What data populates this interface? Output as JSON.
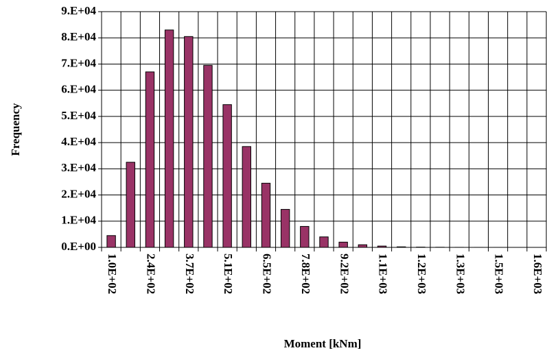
{
  "chart_data": {
    "type": "bar",
    "x_label": "Moment [kNm]",
    "y_label": "Frequency",
    "categories": [
      "1.0E+02",
      null,
      "2.4E+02",
      null,
      "3.7E+02",
      null,
      "5.1E+02",
      null,
      "6.5E+02",
      null,
      "7.8E+02",
      null,
      "9.2E+02",
      null,
      "1.1E+03",
      null,
      "1.2E+03",
      null,
      "1.3E+03",
      null,
      "1.5E+03",
      null,
      "1.6E+03"
    ],
    "values": [
      4500,
      32500,
      67000,
      83000,
      80500,
      69500,
      54500,
      38500,
      24500,
      14500,
      8000,
      4000,
      2000,
      1000,
      500,
      200,
      100,
      50,
      20,
      10,
      5,
      2,
      1
    ],
    "color": "#993366",
    "ylim": [
      0,
      90000
    ],
    "yticks": [
      {
        "value": 0,
        "label": "0.E+00"
      },
      {
        "value": 10000,
        "label": "1.E+04"
      },
      {
        "value": 20000,
        "label": "2.E+04"
      },
      {
        "value": 30000,
        "label": "3.E+04"
      },
      {
        "value": 40000,
        "label": "4.E+04"
      },
      {
        "value": 50000,
        "label": "5.E+04"
      },
      {
        "value": 60000,
        "label": "6.E+04"
      },
      {
        "value": 70000,
        "label": "7.E+04"
      },
      {
        "value": 80000,
        "label": "8.E+04"
      },
      {
        "value": 90000,
        "label": "9.E+04"
      }
    ],
    "grid": true
  }
}
